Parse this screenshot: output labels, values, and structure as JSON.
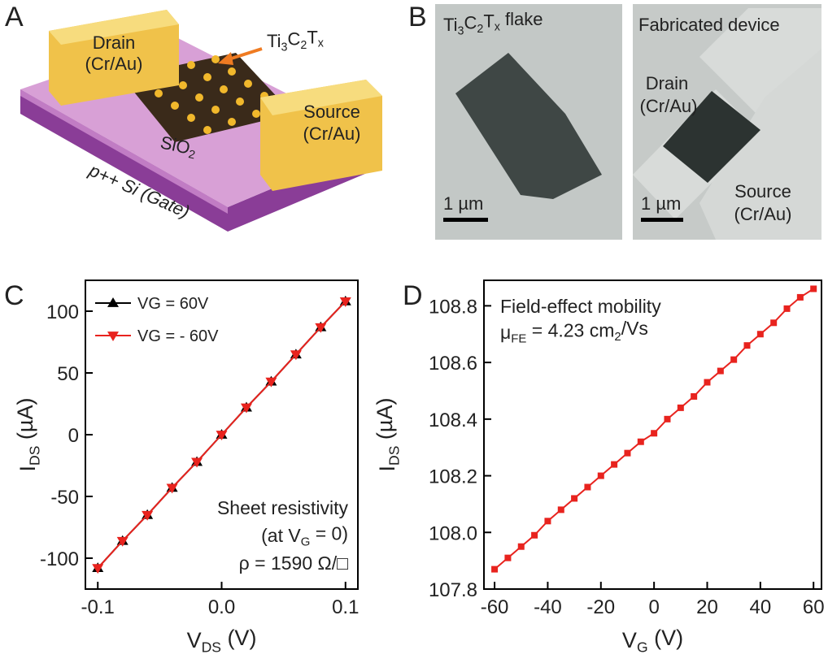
{
  "panel_a": {
    "label": "A",
    "drain": [
      "Drain",
      "(Cr/Au)"
    ],
    "source": [
      "Source",
      "(Cr/Au)"
    ],
    "material": [
      "Ti",
      "3",
      "C",
      "2",
      "T",
      "x"
    ],
    "oxide": [
      "SiO",
      "2"
    ],
    "gate": "p++ Si (Gate)"
  },
  "panel_b": {
    "label": "B",
    "left_title": [
      "Ti",
      "3",
      "C",
      "2",
      "T",
      "x",
      "  flake"
    ],
    "right_title": "Fabricated device",
    "drain": [
      "Drain",
      "(Cr/Au)"
    ],
    "source": [
      "Source",
      "(Cr/Au)"
    ],
    "scale_left": "1 µm",
    "scale_right": "1 µm"
  },
  "chart_data": [
    {
      "type": "line",
      "panel_label": "C",
      "xlabel": [
        "V",
        "DS",
        " (V)"
      ],
      "ylabel": [
        "I",
        "DS",
        " (µA)"
      ],
      "x": [
        -0.1,
        -0.08,
        -0.06,
        -0.04,
        -0.02,
        0,
        0.02,
        0.04,
        0.06,
        0.08,
        0.1
      ],
      "series": [
        {
          "name": "VG = 60V",
          "color": "#000000",
          "marker": "triangle-up",
          "values": [
            -108,
            -86,
            -65,
            -43,
            -22,
            0,
            22,
            43,
            65,
            87,
            108
          ]
        },
        {
          "name": "VG = - 60V",
          "color": "#e8231e",
          "marker": "triangle-down",
          "values": [
            -108,
            -86,
            -65,
            -43,
            -22,
            0,
            22,
            43,
            65,
            87,
            108
          ]
        }
      ],
      "xlim": [
        -0.11,
        0.11
      ],
      "xticks": [
        -0.1,
        {
          "value": 0,
          "label": "0.0"
        },
        0.1
      ],
      "ylim": [
        -125,
        125
      ],
      "yticks": [
        -100,
        -50,
        0,
        50,
        100
      ],
      "legend": "upper left",
      "annotation": [
        [
          "Sheet resistivity"
        ],
        [
          "(at V",
          "G",
          " = 0)"
        ],
        [
          "ρ = 1590 Ω/□"
        ]
      ]
    },
    {
      "type": "line",
      "panel_label": "D",
      "xlabel": [
        "V",
        "G",
        " (V)"
      ],
      "ylabel": [
        "I",
        "DS",
        " (µA)"
      ],
      "x": [
        -60,
        -55,
        -50,
        -45,
        -40,
        -35,
        -30,
        -25,
        -20,
        -15,
        -10,
        -5,
        0,
        5,
        10,
        15,
        20,
        25,
        30,
        35,
        40,
        45,
        50,
        55,
        60
      ],
      "series": [
        {
          "color": "#e8231e",
          "marker": "square",
          "values": [
            107.87,
            107.91,
            107.95,
            107.99,
            108.04,
            108.08,
            108.12,
            108.16,
            108.2,
            108.24,
            108.28,
            108.32,
            108.35,
            108.4,
            108.44,
            108.48,
            108.53,
            108.57,
            108.61,
            108.66,
            108.7,
            108.74,
            108.79,
            108.83,
            108.86
          ]
        }
      ],
      "xlim": [
        -64,
        63
      ],
      "xticks": [
        -60,
        -40,
        -20,
        0,
        20,
        40,
        60
      ],
      "ylim": [
        107.8,
        108.89
      ],
      "yticks": [
        107.8,
        {
          "value": 108,
          "label": "108.0"
        },
        108.2,
        108.4,
        108.6,
        108.8
      ],
      "annotation": [
        [
          "Field-effect mobility"
        ],
        [
          "μ",
          "FE",
          " = 4.23 cm",
          "2",
          "/Vs"
        ]
      ]
    }
  ]
}
